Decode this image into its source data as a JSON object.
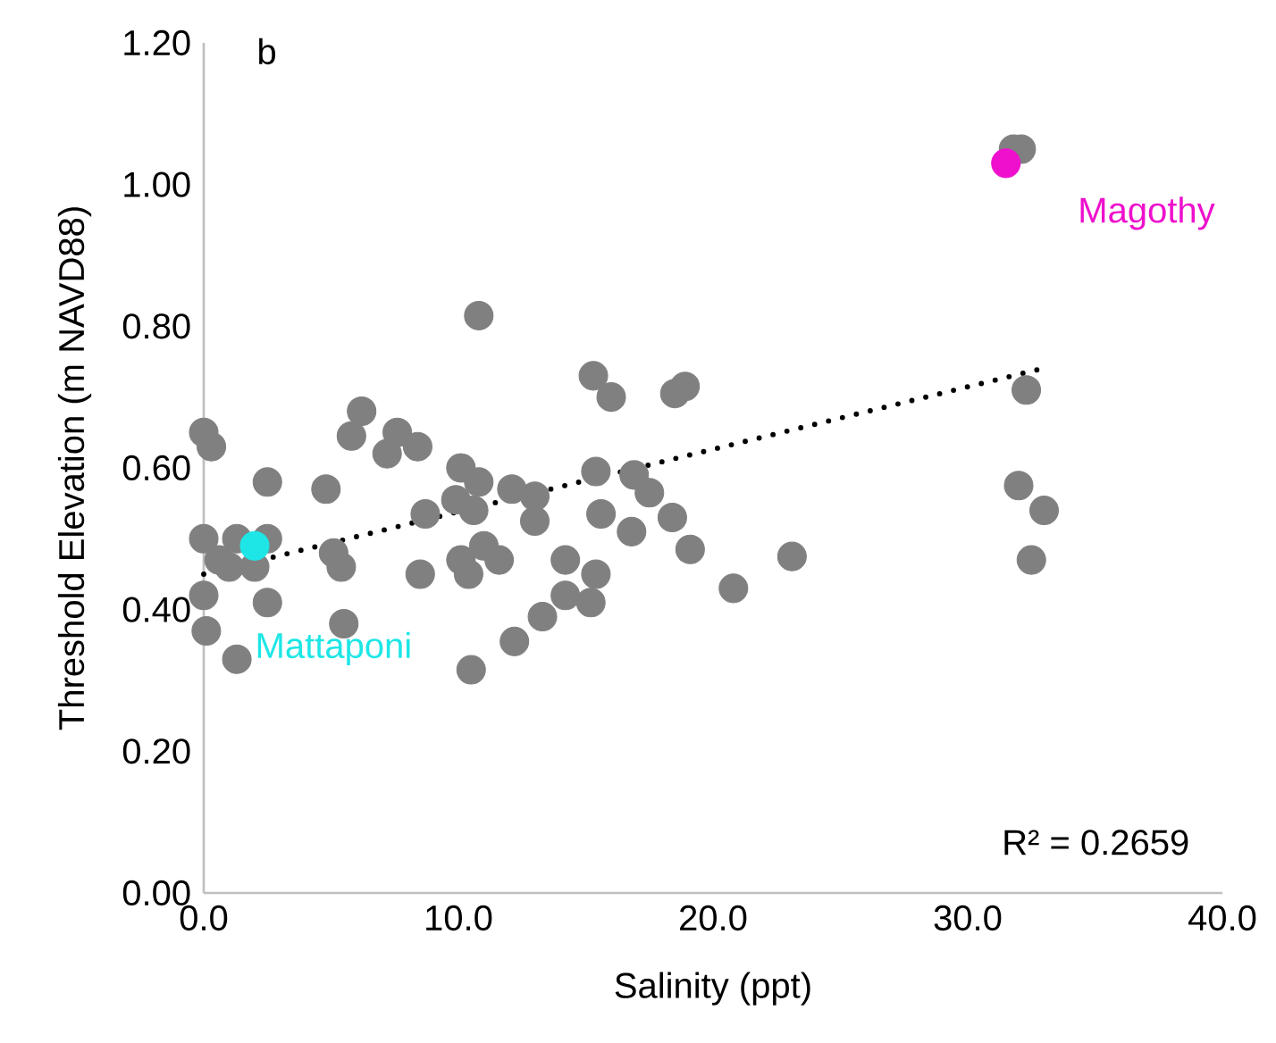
{
  "chart_data": {
    "type": "scatter",
    "xlabel": "Salinity (ppt)",
    "ylabel": "Threshold Elevation (m NAVD88)",
    "annotations": [
      "b",
      "R² = 0.2659"
    ],
    "xlim": [
      0,
      40
    ],
    "ylim": [
      0,
      1.2
    ],
    "xticks": [
      {
        "value": 0,
        "label": "0.0"
      },
      {
        "value": 10,
        "label": "10.0"
      },
      {
        "value": 20,
        "label": "20.0"
      },
      {
        "value": 30,
        "label": "30.0"
      },
      {
        "value": 40,
        "label": "40.0"
      }
    ],
    "yticks": [
      {
        "value": 0,
        "label": "0.00"
      },
      {
        "value": 0.2,
        "label": "0.20"
      },
      {
        "value": 0.4,
        "label": "0.40"
      },
      {
        "value": 0.6,
        "label": "0.60"
      },
      {
        "value": 0.8,
        "label": "0.80"
      },
      {
        "value": 1.0,
        "label": "1.00"
      },
      {
        "value": 1.2,
        "label": "1.20"
      }
    ],
    "grid": false,
    "marker": "circle",
    "series": [
      {
        "color": "#808080",
        "x": [
          0,
          0.3,
          0,
          0.6,
          1.0,
          0,
          0.1,
          1.3,
          2.0,
          2.5,
          2.5,
          2.5,
          1.3,
          4.8,
          5.1,
          5.4,
          5.5,
          6.2,
          5.8,
          7.6,
          7.2,
          8.4,
          8.5,
          8.7,
          10.1,
          10.8,
          9.9,
          10.6,
          10.1,
          10.4,
          11.0,
          11.6,
          12.1,
          13.0,
          12.2,
          10.5,
          10.8,
          13.0,
          14.2,
          14.2,
          15.4,
          15.2,
          13.3,
          15.3,
          16.0,
          15.4,
          15.6,
          16.8,
          16.9,
          17.5,
          18.4,
          19.1,
          18.5,
          18.9,
          20.8,
          23.1,
          31.8,
          32.1,
          32.3,
          32.0,
          33.0,
          32.5
        ],
        "values": [
          0.65,
          0.63,
          0.5,
          0.47,
          0.46,
          0.42,
          0.37,
          0.5,
          0.46,
          0.5,
          0.58,
          0.41,
          0.33,
          0.57,
          0.48,
          0.46,
          0.38,
          0.68,
          0.645,
          0.65,
          0.62,
          0.63,
          0.45,
          0.535,
          0.6,
          0.58,
          0.555,
          0.54,
          0.47,
          0.45,
          0.49,
          0.47,
          0.57,
          0.525,
          0.355,
          0.315,
          0.815,
          0.56,
          0.47,
          0.42,
          0.45,
          0.41,
          0.39,
          0.73,
          0.7,
          0.595,
          0.535,
          0.51,
          0.59,
          0.565,
          0.53,
          0.485,
          0.705,
          0.715,
          0.43,
          0.475,
          1.05,
          1.05,
          0.71,
          0.575,
          0.54,
          0.47
        ]
      },
      {
        "name": "Mattaponi",
        "color": "#1ee6e6",
        "x": [
          2.0
        ],
        "values": [
          0.49
        ]
      },
      {
        "name": "Magothy",
        "color": "#ee10cc",
        "x": [
          31.5
        ],
        "values": [
          1.03
        ]
      },
      {
        "type": "line",
        "color": "#000000",
        "line_style": "dotted",
        "marker": "none",
        "x": [
          0,
          32.9
        ],
        "values": [
          0.45,
          0.74
        ]
      }
    ]
  }
}
